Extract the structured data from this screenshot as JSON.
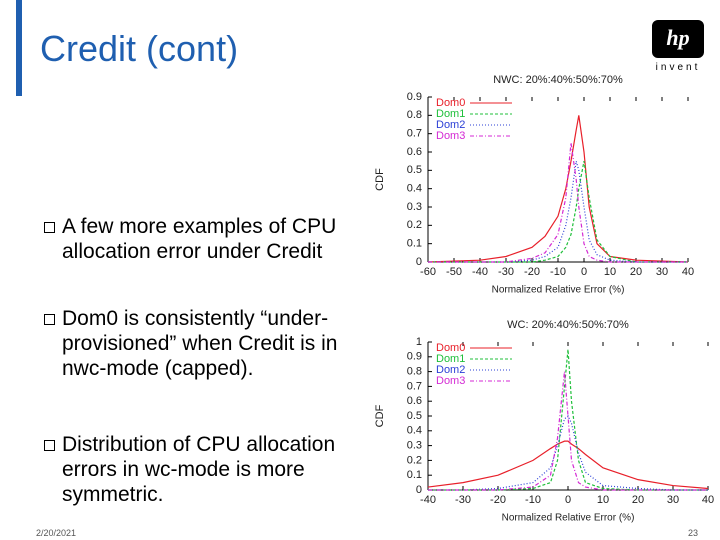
{
  "header": {
    "title": "Credit (cont)",
    "logo": "hp",
    "logo_tagline": "invent"
  },
  "bullets": [
    "A few  more  examples of CPU allocation error under Credit",
    "Dom0 is consistently “under-provisioned” when Credit is in nwc-mode (capped).",
    "Distribution of CPU allocation errors in wc-mode is more symmetric."
  ],
  "footer": {
    "date": "2/20/2021",
    "page": "23"
  },
  "chart_data": [
    {
      "type": "line",
      "title": "NWC: 20%:40%:50%:70%",
      "y_label": "CDF",
      "x_label": "Normalized Relative Error (%)",
      "x": [
        -60,
        -40,
        -30,
        -20,
        -15,
        -10,
        -7,
        -5,
        -3,
        -2,
        0,
        2,
        5,
        10,
        20,
        40
      ],
      "series": [
        {
          "name": "Dom0",
          "color": "#e8202a",
          "values": [
            0,
            0.01,
            0.03,
            0.08,
            0.14,
            0.25,
            0.4,
            0.55,
            0.72,
            0.8,
            0.6,
            0.3,
            0.1,
            0.03,
            0.01,
            0
          ]
        },
        {
          "name": "Dom1",
          "color": "#1fbf3a",
          "values": [
            0,
            0,
            0,
            0,
            0.01,
            0.03,
            0.08,
            0.15,
            0.3,
            0.4,
            0.55,
            0.35,
            0.12,
            0.03,
            0,
            0
          ]
        },
        {
          "name": "Dom2",
          "color": "#2b3fd6",
          "values": [
            0,
            0,
            0,
            0.01,
            0.03,
            0.08,
            0.2,
            0.35,
            0.55,
            0.5,
            0.3,
            0.12,
            0.04,
            0.01,
            0,
            0
          ]
        },
        {
          "name": "Dom3",
          "color": "#d42ad4",
          "values": [
            0,
            0,
            0,
            0.02,
            0.05,
            0.15,
            0.35,
            0.65,
            0.45,
            0.3,
            0.1,
            0.03,
            0.01,
            0,
            0,
            0
          ]
        }
      ],
      "xlim": [
        -60,
        40
      ],
      "xticks": [
        -60,
        -50,
        -40,
        -30,
        -20,
        -10,
        0,
        10,
        20,
        30,
        40
      ],
      "ylim": [
        0,
        0.9
      ],
      "yticks": [
        0,
        0.1,
        0.2,
        0.3,
        0.4,
        0.5,
        0.6,
        0.7,
        0.8,
        0.9
      ],
      "legend": "top-left"
    },
    {
      "type": "line",
      "title": "WC: 20%:40%:50%:70%",
      "y_label": "CDF",
      "x_label": "Normalized Relative Error (%)",
      "x": [
        -40,
        -30,
        -20,
        -10,
        -5,
        -3,
        -1,
        0,
        1,
        3,
        5,
        10,
        20,
        30,
        40
      ],
      "series": [
        {
          "name": "Dom0",
          "color": "#e8202a",
          "values": [
            0.02,
            0.05,
            0.1,
            0.2,
            0.28,
            0.31,
            0.33,
            0.33,
            0.31,
            0.28,
            0.24,
            0.15,
            0.07,
            0.03,
            0.01
          ]
        },
        {
          "name": "Dom1",
          "color": "#1fbf3a",
          "values": [
            0,
            0,
            0,
            0.01,
            0.05,
            0.2,
            0.7,
            0.95,
            0.6,
            0.2,
            0.05,
            0.01,
            0,
            0,
            0
          ]
        },
        {
          "name": "Dom2",
          "color": "#2b3fd6",
          "values": [
            0,
            0,
            0.01,
            0.05,
            0.15,
            0.3,
            0.48,
            0.5,
            0.45,
            0.25,
            0.12,
            0.03,
            0.01,
            0,
            0
          ]
        },
        {
          "name": "Dom3",
          "color": "#d42ad4",
          "values": [
            0,
            0,
            0,
            0.02,
            0.1,
            0.35,
            0.8,
            0.5,
            0.2,
            0.05,
            0.02,
            0,
            0,
            0,
            0
          ]
        }
      ],
      "xlim": [
        -40,
        40
      ],
      "xticks": [
        -40,
        -30,
        -20,
        -10,
        0,
        10,
        20,
        30,
        40
      ],
      "ylim": [
        0,
        1
      ],
      "yticks": [
        0,
        0.1,
        0.2,
        0.3,
        0.4,
        0.5,
        0.6,
        0.7,
        0.8,
        0.9,
        1
      ],
      "legend": "top-left"
    }
  ]
}
